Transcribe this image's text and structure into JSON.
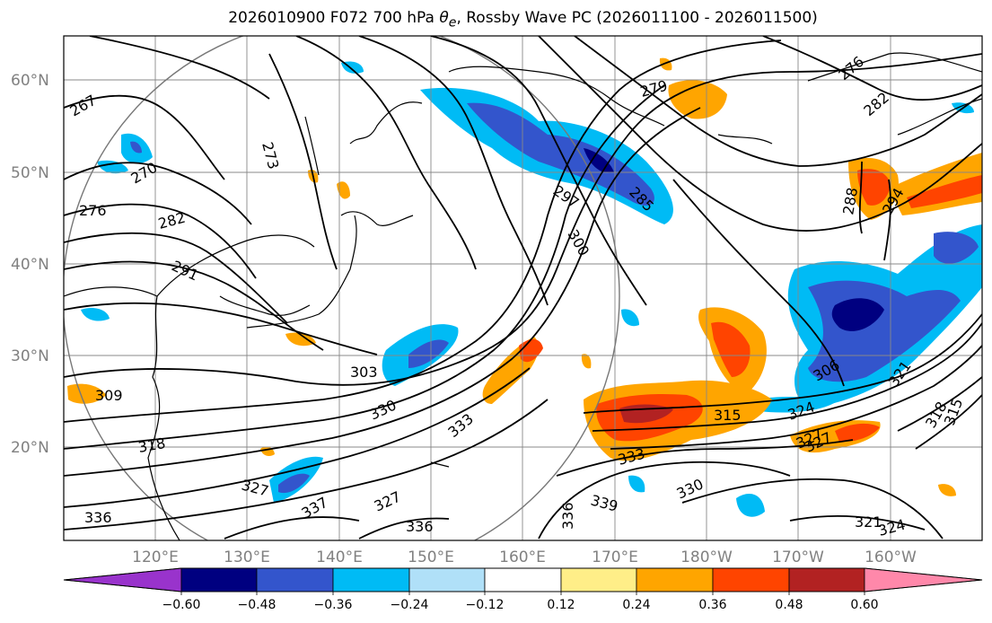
{
  "title": {
    "prefix": "2026010900 F072 700 hPa ",
    "theta": "θ",
    "theta_sub": "e",
    "suffix": ", Rossby Wave PC (2026011100 - 2026011500)"
  },
  "map": {
    "lat_labels": [
      "60°N",
      "50°N",
      "40°N",
      "30°N",
      "20°N"
    ],
    "lon_labels": [
      "120°E",
      "130°E",
      "140°E",
      "150°E",
      "160°E",
      "170°E",
      "180°W",
      "170°W",
      "160°W"
    ],
    "contour_labels": [
      "267",
      "270",
      "276",
      "282",
      "291",
      "273",
      "303",
      "309",
      "318",
      "327",
      "336",
      "330",
      "333",
      "327",
      "336",
      "337",
      "300",
      "297",
      "285",
      "279",
      "282",
      "276",
      "288",
      "294",
      "306",
      "321",
      "318",
      "315",
      "324",
      "327",
      "315",
      "333",
      "339",
      "336",
      "330",
      "327",
      "321",
      "324"
    ],
    "colors": {
      "neg_0": "#9933cc",
      "neg_1": "#000080",
      "neg_2": "#3355cc",
      "neg_3": "#00bbf5",
      "neg_4": "#b0e0f8",
      "neutral": "#ffffff",
      "pos_1": "#ffee88",
      "pos_2": "#ffa500",
      "pos_3": "#ff4400",
      "pos_4": "#b22222",
      "pos_5": "#ff88aa"
    }
  },
  "colorbar": {
    "ticks": [
      "−0.60",
      "−0.48",
      "−0.36",
      "−0.24",
      "−0.12",
      "0.12",
      "0.24",
      "0.36",
      "0.48",
      "0.60"
    ],
    "colors": [
      "#9933cc",
      "#000080",
      "#3355cc",
      "#00bbf5",
      "#b0e0f8",
      "#ffffff",
      "#ffee88",
      "#ffa500",
      "#ff4400",
      "#b22222",
      "#ff88aa"
    ]
  }
}
